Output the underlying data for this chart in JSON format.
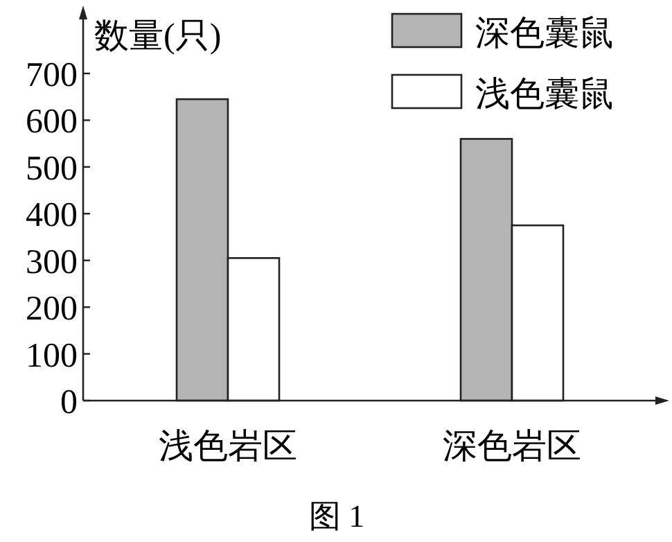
{
  "chart_data": {
    "type": "bar",
    "ylabel": "数量(只)",
    "categories": [
      "浅色岩区",
      "深色岩区"
    ],
    "series": [
      {
        "name": "深色囊鼠",
        "color": "#b4b4b4",
        "values": [
          645,
          560
        ]
      },
      {
        "name": "浅色囊鼠",
        "color": "#ffffff",
        "values": [
          305,
          375
        ]
      }
    ],
    "ylim": [
      0,
      700
    ],
    "yticks": [
      0,
      100,
      200,
      300,
      400,
      500,
      600,
      700
    ],
    "legend": "top right",
    "annotations": [
      "图 1"
    ]
  }
}
